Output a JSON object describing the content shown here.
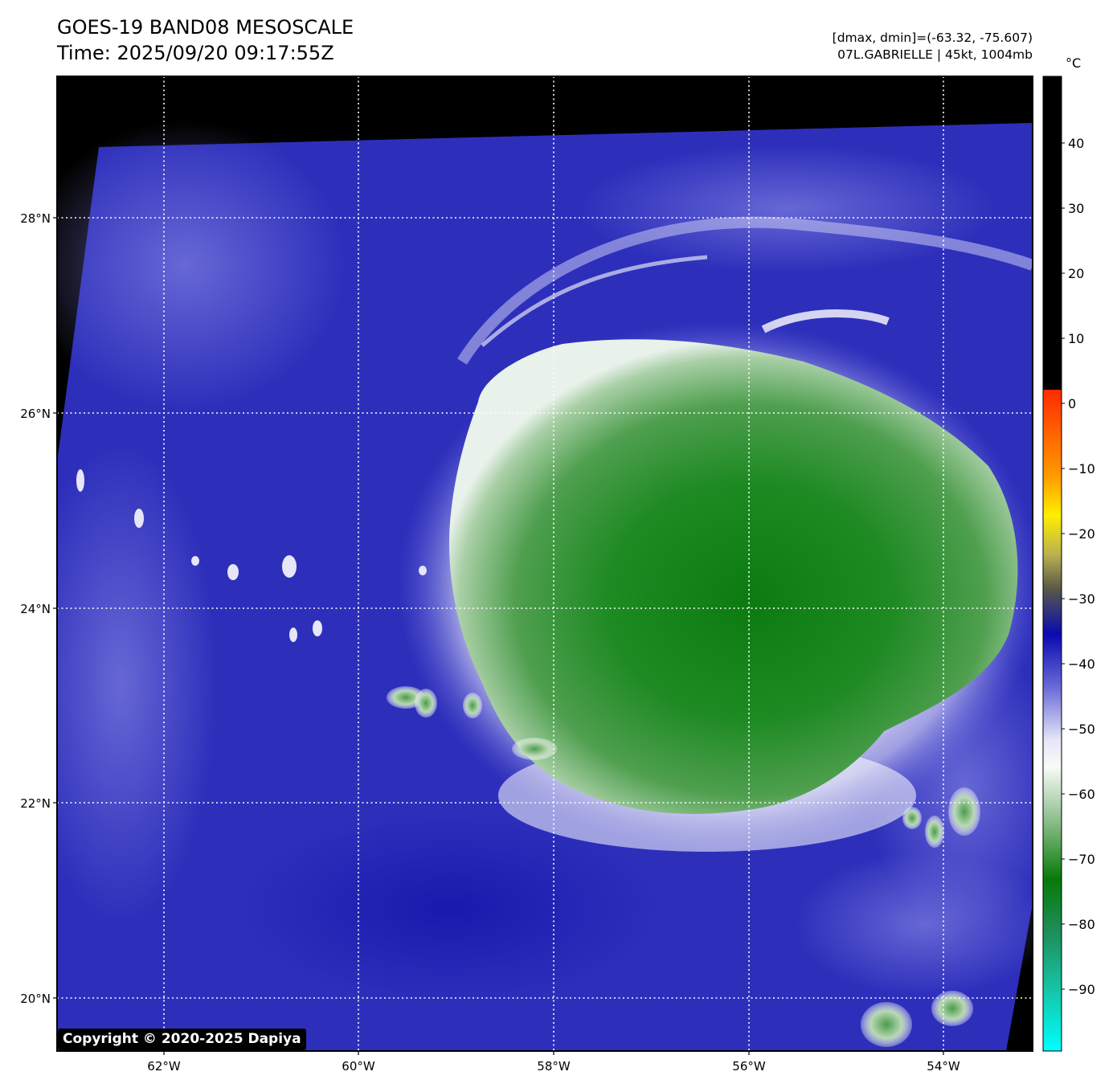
{
  "header": {
    "title_line1": "GOES-19 BAND08 MESOSCALE",
    "title_line2": "Time: 2025/09/20 09:17:55Z",
    "dmax_dmin": "[dmax, dmin]=(-63.32, -75.607)",
    "storm_info": "07L.GABRIELLE | 45kt, 1004mb"
  },
  "map": {
    "lon_labels": [
      "62°W",
      "60°W",
      "58°W",
      "56°W",
      "54°W"
    ],
    "lat_labels": [
      "28°N",
      "26°N",
      "24°N",
      "22°N",
      "20°N"
    ],
    "grid": true
  },
  "colorbar": {
    "unit": "°C",
    "tick_labels": [
      "40",
      "30",
      "20",
      "10",
      "0",
      "−10",
      "−20",
      "−30",
      "−40",
      "−50",
      "−60",
      "−70",
      "−80",
      "−90"
    ],
    "colors": {
      "warm": "#000000",
      "zero": "#ff2a00",
      "minus10": "#ff9a00",
      "minus15": "#ffee00",
      "minus22": "#6f6a3c",
      "minus30": "#0a0ab0",
      "minus45": "#ffffff",
      "minus60": "#6fae6f",
      "minus72": "#087a08",
      "minus80": "#1fa06a",
      "minus100": "#00ffff"
    }
  },
  "copyright": "Copyright © 2020-2025 Dapiya"
}
